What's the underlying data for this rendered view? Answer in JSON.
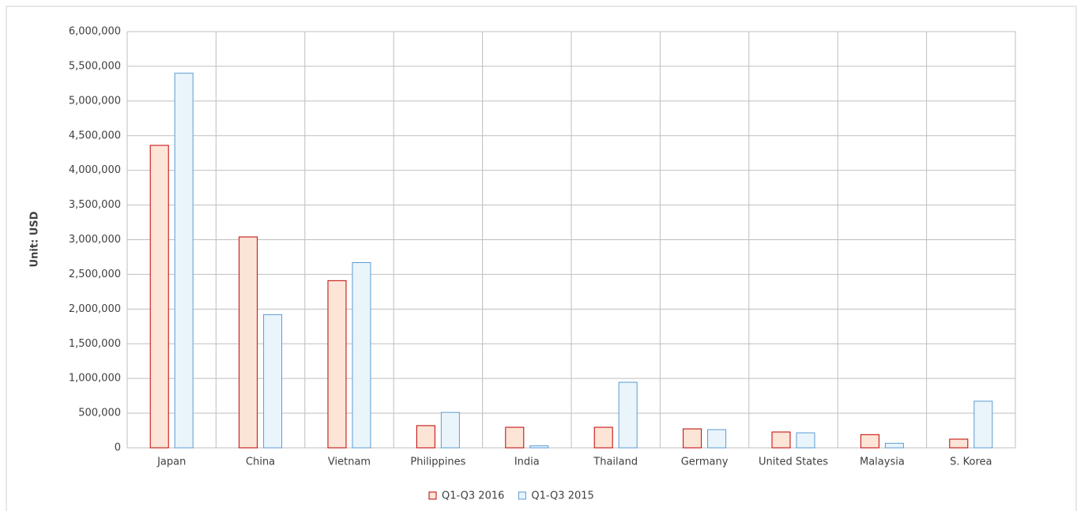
{
  "chart_data": {
    "type": "bar",
    "ylabel": "Unit: USD",
    "categories": [
      "Japan",
      "China",
      "Vietnam",
      "Philippines",
      "India",
      "Thailand",
      "Germany",
      "United States",
      "Malaysia",
      "S. Korea"
    ],
    "series": [
      {
        "name": "Q1-Q3 2016",
        "color": "#fce4d6",
        "edge": "#c00000",
        "values": [
          4360000,
          3040000,
          2410000,
          320000,
          296000,
          296000,
          273000,
          228000,
          190000,
          125000
        ]
      },
      {
        "name": "Q1-Q3 2015",
        "color": "#eaf5fb",
        "edge": "#5b9bd5",
        "values": [
          5400000,
          1920000,
          2670000,
          510000,
          30000,
          945000,
          262000,
          216000,
          65000,
          672000
        ]
      }
    ],
    "ylim": [
      0,
      6000000
    ],
    "yticks": [
      0,
      {
        "value": 500000,
        "label": "500,000"
      },
      {
        "value": 1000000,
        "label": "1,000,000"
      },
      {
        "value": 1500000,
        "label": "1,500,000"
      },
      {
        "value": 2000000,
        "label": "2,000,000"
      },
      {
        "value": 2500000,
        "label": "2,500,000"
      },
      {
        "value": 3000000,
        "label": "3,000,000"
      },
      {
        "value": 3500000,
        "label": "3,500,000"
      },
      {
        "value": 4000000,
        "label": "4,000,000"
      },
      {
        "value": 4500000,
        "label": "4,500,000"
      },
      {
        "value": 5000000,
        "label": "5,000,000"
      },
      {
        "value": 5500000,
        "label": "5,500,000"
      },
      {
        "value": 6000000,
        "label": "6,000,000"
      }
    ],
    "grid": true,
    "legend": "bottom"
  }
}
